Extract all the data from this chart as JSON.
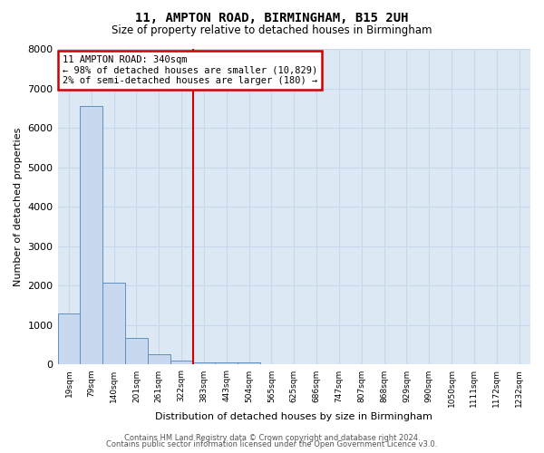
{
  "title": "11, AMPTON ROAD, BIRMINGHAM, B15 2UH",
  "subtitle": "Size of property relative to detached houses in Birmingham",
  "xlabel": "Distribution of detached houses by size in Birmingham",
  "ylabel": "Number of detached properties",
  "bar_labels": [
    "19sqm",
    "79sqm",
    "140sqm",
    "201sqm",
    "261sqm",
    "322sqm",
    "383sqm",
    "443sqm",
    "504sqm",
    "565sqm",
    "625sqm",
    "686sqm",
    "747sqm",
    "807sqm",
    "868sqm",
    "929sqm",
    "990sqm",
    "1050sqm",
    "1111sqm",
    "1172sqm",
    "1232sqm"
  ],
  "bar_values": [
    1300,
    6550,
    2080,
    670,
    270,
    110,
    65,
    50,
    55,
    0,
    0,
    0,
    0,
    0,
    0,
    0,
    0,
    0,
    0,
    0,
    0
  ],
  "bar_color": "#c8d8ee",
  "bar_edge_color": "#6090c0",
  "vline_x": 5.5,
  "vline_color": "#cc0000",
  "annotation_text": "11 AMPTON ROAD: 340sqm\n← 98% of detached houses are smaller (10,829)\n2% of semi-detached houses are larger (180) →",
  "annotation_box_color": "#cc0000",
  "ylim": [
    0,
    8000
  ],
  "yticks": [
    0,
    1000,
    2000,
    3000,
    4000,
    5000,
    6000,
    7000,
    8000
  ],
  "grid_color": "#c8d8ec",
  "bg_color": "#dce8f4",
  "footer_line1": "Contains HM Land Registry data © Crown copyright and database right 2024.",
  "footer_line2": "Contains public sector information licensed under the Open Government Licence v3.0."
}
